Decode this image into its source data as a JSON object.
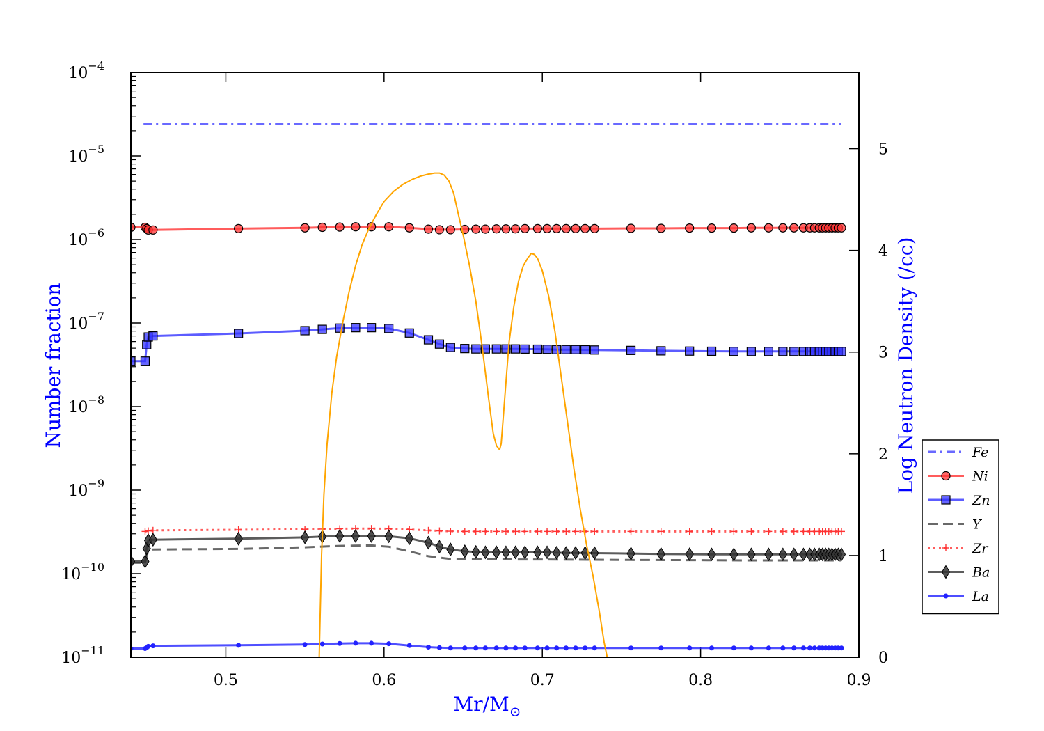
{
  "chart_data": {
    "type": "line",
    "xlabel": "Mr/M",
    "xlabel_sub": "⊙",
    "ylabel_left": "Number fraction",
    "ylabel_right": "Log Neutron Density (/cc)",
    "label_color": "#0000ff",
    "xlim": [
      0.44,
      0.9
    ],
    "ylim_left": [
      1e-11,
      0.0001
    ],
    "yscale_left": "log",
    "ylim_right": [
      0,
      5.75
    ],
    "x_ticks": [
      0.5,
      0.6,
      0.7,
      0.8,
      0.9
    ],
    "x_tick_labels": [
      "0.5",
      "0.6",
      "0.7",
      "0.8",
      "0.9"
    ],
    "y_ticks_left": [
      {
        "base": "10",
        "exp": "−4",
        "value": 0.0001
      },
      {
        "base": "10",
        "exp": "−5",
        "value": 1e-05
      },
      {
        "base": "10",
        "exp": "−6",
        "value": 1e-06
      },
      {
        "base": "10",
        "exp": "−7",
        "value": 1e-07
      },
      {
        "base": "10",
        "exp": "−8",
        "value": 1e-08
      },
      {
        "base": "10",
        "exp": "−9",
        "value": 1e-09
      },
      {
        "base": "10",
        "exp": "−10",
        "value": 1e-10
      },
      {
        "base": "10",
        "exp": "−11",
        "value": 1e-11
      }
    ],
    "y_ticks_right": [
      "0",
      "1",
      "2",
      "3",
      "4",
      "5"
    ],
    "legend_position": "center-right outside",
    "series": [
      {
        "name": "Fe",
        "color": "#4444ff",
        "style": "dashdot",
        "marker": "none",
        "x": [
          0.448,
          0.889
        ],
        "y": [
          2.4e-05,
          2.4e-05
        ]
      },
      {
        "name": "Ni",
        "color": "#ff3333",
        "style": "solid",
        "marker": "circle",
        "x": [
          0.44,
          0.449,
          0.45,
          0.451,
          0.454,
          0.508,
          0.55,
          0.561,
          0.572,
          0.582,
          0.592,
          0.603,
          0.616,
          0.628,
          0.635,
          0.642,
          0.651,
          0.658,
          0.664,
          0.671,
          0.677,
          0.683,
          0.689,
          0.697,
          0.703,
          0.709,
          0.715,
          0.721,
          0.727,
          0.733,
          0.756,
          0.775,
          0.793,
          0.807,
          0.821,
          0.832,
          0.843,
          0.852,
          0.859,
          0.865,
          0.869,
          0.872,
          0.875,
          0.877,
          0.879,
          0.881,
          0.883,
          0.885,
          0.887,
          0.889
        ],
        "y": [
          1.4e-06,
          1.4e-06,
          1.35e-06,
          1.3e-06,
          1.3e-06,
          1.35e-06,
          1.38e-06,
          1.4e-06,
          1.41e-06,
          1.42e-06,
          1.42e-06,
          1.42e-06,
          1.38e-06,
          1.33e-06,
          1.31e-06,
          1.31e-06,
          1.32e-06,
          1.33e-06,
          1.33e-06,
          1.34e-06,
          1.34e-06,
          1.34e-06,
          1.35e-06,
          1.35e-06,
          1.35e-06,
          1.35e-06,
          1.35e-06,
          1.35e-06,
          1.35e-06,
          1.35e-06,
          1.36e-06,
          1.36e-06,
          1.37e-06,
          1.37e-06,
          1.37e-06,
          1.38e-06,
          1.38e-06,
          1.38e-06,
          1.38e-06,
          1.38e-06,
          1.38e-06,
          1.38e-06,
          1.38e-06,
          1.38e-06,
          1.38e-06,
          1.38e-06,
          1.38e-06,
          1.38e-06,
          1.38e-06,
          1.38e-06
        ]
      },
      {
        "name": "Zn",
        "color": "#3333ff",
        "style": "solid",
        "marker": "square",
        "x": [
          0.44,
          0.449,
          0.45,
          0.451,
          0.454,
          0.508,
          0.55,
          0.561,
          0.572,
          0.582,
          0.592,
          0.603,
          0.616,
          0.628,
          0.635,
          0.642,
          0.651,
          0.658,
          0.664,
          0.671,
          0.677,
          0.683,
          0.689,
          0.697,
          0.703,
          0.709,
          0.715,
          0.721,
          0.727,
          0.733,
          0.756,
          0.775,
          0.793,
          0.807,
          0.821,
          0.832,
          0.843,
          0.852,
          0.859,
          0.865,
          0.869,
          0.872,
          0.875,
          0.877,
          0.879,
          0.881,
          0.883,
          0.885,
          0.887,
          0.889
        ],
        "y": [
          3.5e-08,
          3.5e-08,
          5.5e-08,
          6.8e-08,
          7e-08,
          7.5e-08,
          8.1e-08,
          8.4e-08,
          8.7e-08,
          8.8e-08,
          8.8e-08,
          8.6e-08,
          7.6e-08,
          6.3e-08,
          5.6e-08,
          5.1e-08,
          4.95e-08,
          4.9e-08,
          4.9e-08,
          4.9e-08,
          4.9e-08,
          4.9e-08,
          4.88e-08,
          4.87e-08,
          4.85e-08,
          4.8e-08,
          4.8e-08,
          4.8e-08,
          4.78e-08,
          4.75e-08,
          4.7e-08,
          4.65e-08,
          4.62e-08,
          4.6e-08,
          4.58e-08,
          4.57e-08,
          4.57e-08,
          4.57e-08,
          4.57e-08,
          4.57e-08,
          4.57e-08,
          4.57e-08,
          4.57e-08,
          4.57e-08,
          4.57e-08,
          4.57e-08,
          4.57e-08,
          4.57e-08,
          4.57e-08,
          4.57e-08
        ]
      },
      {
        "name": "Y",
        "color": "#444444",
        "style": "dashed",
        "marker": "none",
        "x": [
          0.44,
          0.449,
          0.451,
          0.454,
          0.508,
          0.55,
          0.572,
          0.592,
          0.603,
          0.616,
          0.628,
          0.642,
          0.651,
          0.664,
          0.683,
          0.703,
          0.721,
          0.756,
          0.793,
          0.832,
          0.865,
          0.889
        ],
        "y": [
          1.35e-10,
          1.35e-10,
          1.9e-10,
          1.95e-10,
          1.98e-10,
          2.07e-10,
          2.15e-10,
          2.18e-10,
          2.1e-10,
          1.85e-10,
          1.62e-10,
          1.5e-10,
          1.49e-10,
          1.49e-10,
          1.48e-10,
          1.48e-10,
          1.47e-10,
          1.46e-10,
          1.45e-10,
          1.44e-10,
          1.44e-10,
          1.44e-10
        ]
      },
      {
        "name": "Zr",
        "color": "#ff3333",
        "style": "dotted",
        "marker": "plus",
        "x": [
          0.449,
          0.451,
          0.454,
          0.508,
          0.55,
          0.561,
          0.572,
          0.582,
          0.592,
          0.603,
          0.616,
          0.628,
          0.635,
          0.642,
          0.651,
          0.658,
          0.664,
          0.671,
          0.677,
          0.683,
          0.689,
          0.697,
          0.703,
          0.709,
          0.715,
          0.721,
          0.727,
          0.733,
          0.756,
          0.775,
          0.793,
          0.807,
          0.821,
          0.832,
          0.843,
          0.852,
          0.859,
          0.865,
          0.869,
          0.872,
          0.875,
          0.877,
          0.879,
          0.881,
          0.883,
          0.885,
          0.887,
          0.889
        ],
        "y": [
          3.2e-10,
          3.25e-10,
          3.3e-10,
          3.35e-10,
          3.4e-10,
          3.42e-10,
          3.45e-10,
          3.47e-10,
          3.47e-10,
          3.45e-10,
          3.38e-10,
          3.3e-10,
          3.25e-10,
          3.22e-10,
          3.2e-10,
          3.2e-10,
          3.2e-10,
          3.2e-10,
          3.2e-10,
          3.2e-10,
          3.2e-10,
          3.2e-10,
          3.2e-10,
          3.2e-10,
          3.2e-10,
          3.2e-10,
          3.2e-10,
          3.2e-10,
          3.2e-10,
          3.2e-10,
          3.2e-10,
          3.2e-10,
          3.2e-10,
          3.2e-10,
          3.2e-10,
          3.2e-10,
          3.2e-10,
          3.2e-10,
          3.2e-10,
          3.2e-10,
          3.2e-10,
          3.2e-10,
          3.2e-10,
          3.2e-10,
          3.2e-10,
          3.2e-10,
          3.2e-10,
          3.2e-10
        ]
      },
      {
        "name": "Ba",
        "color": "#333333",
        "style": "solid",
        "marker": "diamond",
        "x": [
          0.44,
          0.449,
          0.45,
          0.451,
          0.454,
          0.508,
          0.55,
          0.561,
          0.572,
          0.582,
          0.592,
          0.603,
          0.616,
          0.628,
          0.635,
          0.642,
          0.651,
          0.658,
          0.664,
          0.671,
          0.677,
          0.683,
          0.689,
          0.697,
          0.703,
          0.709,
          0.715,
          0.721,
          0.727,
          0.733,
          0.756,
          0.775,
          0.793,
          0.807,
          0.821,
          0.832,
          0.843,
          0.852,
          0.859,
          0.865,
          0.869,
          0.872,
          0.875,
          0.877,
          0.879,
          0.881,
          0.883,
          0.885,
          0.887,
          0.889
        ],
        "y": [
          1.4e-10,
          1.4e-10,
          2e-10,
          2.5e-10,
          2.55e-10,
          2.62e-10,
          2.72e-10,
          2.78e-10,
          2.82e-10,
          2.82e-10,
          2.82e-10,
          2.8e-10,
          2.65e-10,
          2.35e-10,
          2.1e-10,
          1.95e-10,
          1.85e-10,
          1.82e-10,
          1.8e-10,
          1.8e-10,
          1.8e-10,
          1.8e-10,
          1.8e-10,
          1.8e-10,
          1.8e-10,
          1.78e-10,
          1.77e-10,
          1.77e-10,
          1.77e-10,
          1.76e-10,
          1.74e-10,
          1.72e-10,
          1.71e-10,
          1.7e-10,
          1.7e-10,
          1.7e-10,
          1.7e-10,
          1.7e-10,
          1.7e-10,
          1.7e-10,
          1.7e-10,
          1.7e-10,
          1.7e-10,
          1.7e-10,
          1.7e-10,
          1.7e-10,
          1.7e-10,
          1.7e-10,
          1.7e-10,
          1.7e-10
        ]
      },
      {
        "name": "La",
        "color": "#2222ff",
        "style": "solid",
        "marker": "dot",
        "x": [
          0.44,
          0.449,
          0.45,
          0.451,
          0.454,
          0.508,
          0.55,
          0.561,
          0.572,
          0.582,
          0.592,
          0.603,
          0.616,
          0.628,
          0.635,
          0.642,
          0.651,
          0.658,
          0.664,
          0.671,
          0.677,
          0.683,
          0.689,
          0.697,
          0.703,
          0.709,
          0.715,
          0.721,
          0.727,
          0.733,
          0.756,
          0.775,
          0.793,
          0.807,
          0.821,
          0.832,
          0.843,
          0.852,
          0.859,
          0.865,
          0.869,
          0.872,
          0.875,
          0.877,
          0.879,
          0.881,
          0.883,
          0.885,
          0.887,
          0.889
        ],
        "y": [
          1.27e-11,
          1.27e-11,
          1.3e-11,
          1.35e-11,
          1.37e-11,
          1.39e-11,
          1.42e-11,
          1.44e-11,
          1.46e-11,
          1.47e-11,
          1.47e-11,
          1.45e-11,
          1.38e-11,
          1.32e-11,
          1.3e-11,
          1.29e-11,
          1.29e-11,
          1.29e-11,
          1.29e-11,
          1.29e-11,
          1.29e-11,
          1.29e-11,
          1.29e-11,
          1.29e-11,
          1.29e-11,
          1.29e-11,
          1.29e-11,
          1.29e-11,
          1.29e-11,
          1.29e-11,
          1.29e-11,
          1.29e-11,
          1.29e-11,
          1.29e-11,
          1.29e-11,
          1.29e-11,
          1.29e-11,
          1.29e-11,
          1.29e-11,
          1.29e-11,
          1.29e-11,
          1.29e-11,
          1.29e-11,
          1.29e-11,
          1.29e-11,
          1.29e-11,
          1.29e-11,
          1.29e-11,
          1.29e-11,
          1.29e-11
        ]
      }
    ],
    "neutron_density": {
      "color": "#ffa500",
      "axis": "right",
      "x": [
        0.559,
        0.5605,
        0.562,
        0.564,
        0.567,
        0.57,
        0.574,
        0.578,
        0.582,
        0.586,
        0.59,
        0.595,
        0.6,
        0.606,
        0.612,
        0.618,
        0.623,
        0.628,
        0.632,
        0.635,
        0.638,
        0.641,
        0.644,
        0.647,
        0.65,
        0.654,
        0.658,
        0.662,
        0.666,
        0.669,
        0.671,
        0.673,
        0.674,
        0.675,
        0.677,
        0.679,
        0.682,
        0.685,
        0.688,
        0.691,
        0.693,
        0.695,
        0.697,
        0.7,
        0.704,
        0.708,
        0.712,
        0.716,
        0.72,
        0.724,
        0.728,
        0.732,
        0.736,
        0.739,
        0.741
      ],
      "y": [
        0.0,
        1.0,
        1.6,
        2.1,
        2.6,
        2.95,
        3.3,
        3.6,
        3.85,
        4.05,
        4.2,
        4.35,
        4.48,
        4.58,
        4.65,
        4.7,
        4.73,
        4.75,
        4.76,
        4.76,
        4.74,
        4.68,
        4.56,
        4.35,
        4.15,
        3.85,
        3.5,
        3.05,
        2.55,
        2.2,
        2.08,
        2.04,
        2.1,
        2.3,
        2.7,
        3.1,
        3.45,
        3.7,
        3.85,
        3.93,
        3.97,
        3.96,
        3.92,
        3.8,
        3.55,
        3.2,
        2.75,
        2.3,
        1.85,
        1.45,
        1.1,
        0.8,
        0.45,
        0.15,
        0.0
      ]
    }
  }
}
